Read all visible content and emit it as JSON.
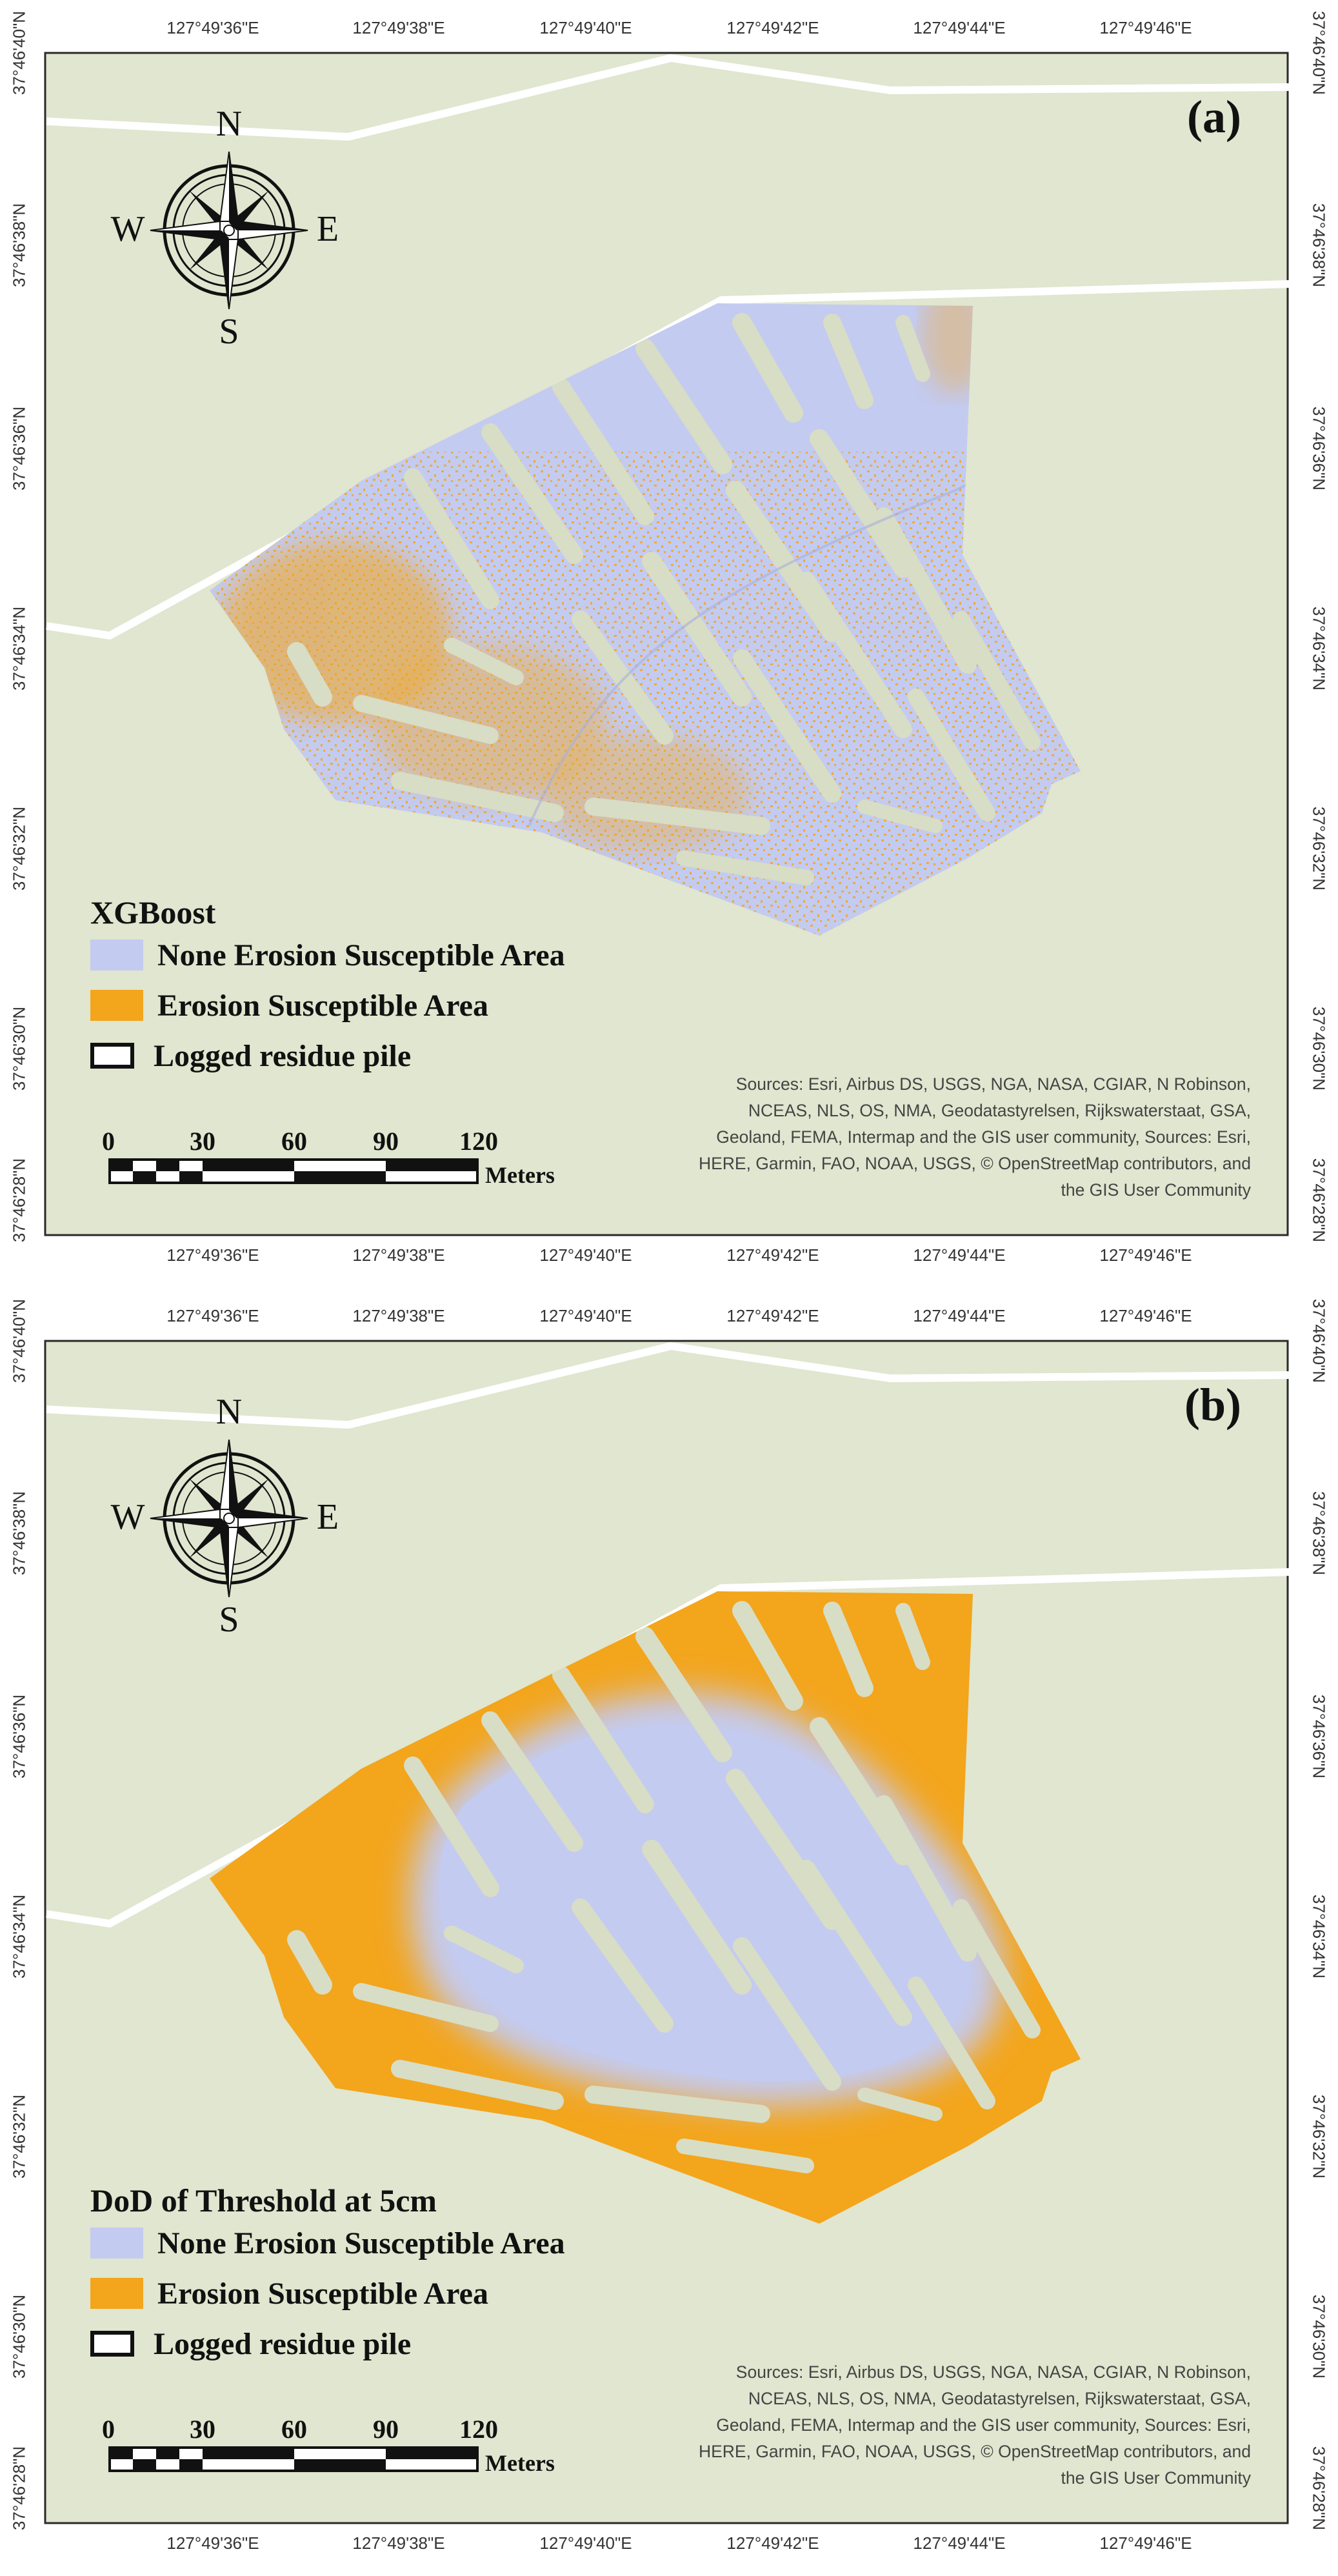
{
  "colors": {
    "background": "#e0e6cf",
    "road": "#ffffff",
    "none_erosion": "#c4cbf0",
    "erosion": "#f3a51c",
    "residue_pile": "#d8ddc5"
  },
  "panels": [
    {
      "id": "a",
      "label": "(a)",
      "legend_title": "XGBoost",
      "erosion_pattern": "scattered-speckle"
    },
    {
      "id": "b",
      "label": "(b)",
      "legend_title": "DoD of Threshold at 5cm",
      "erosion_pattern": "outer-rim"
    }
  ],
  "legend": {
    "items": [
      {
        "label": "None Erosion Susceptible Area",
        "color_key": "none_erosion"
      },
      {
        "label": "Erosion Susceptible Area",
        "color_key": "erosion"
      },
      {
        "label": "Logged residue pile",
        "color_key": "residue_pile"
      }
    ]
  },
  "graticule": {
    "longitude_labels": [
      "127°49'36\"E",
      "127°49'38\"E",
      "127°49'40\"E",
      "127°49'42\"E",
      "127°49'44\"E",
      "127°49'46\"E"
    ],
    "latitude_labels": [
      "37°46'40\"N",
      "37°46'38\"N",
      "37°46'36\"N",
      "37°46'34\"N",
      "37°46'32\"N",
      "37°46'30\"N",
      "37°46'28\"N"
    ]
  },
  "compass": {
    "north": "N",
    "south": "S",
    "east": "E",
    "west": "W",
    "icon": "compass-rose-icon"
  },
  "scale_bar": {
    "ticks": [
      "0",
      "30",
      "60",
      "90",
      "120"
    ],
    "unit": "Meters"
  },
  "attribution": "Sources: Esri, Airbus DS, USGS, NGA, NASA, CGIAR, N Robinson, NCEAS, NLS, OS, NMA, Geodatastyrelsen, Rijkswaterstaat, GSA, Geoland, FEMA, Intermap and the GIS user community, Sources: Esri, HERE, Garmin, FAO, NOAA, USGS, © OpenStreetMap contributors, and the GIS User Community"
}
